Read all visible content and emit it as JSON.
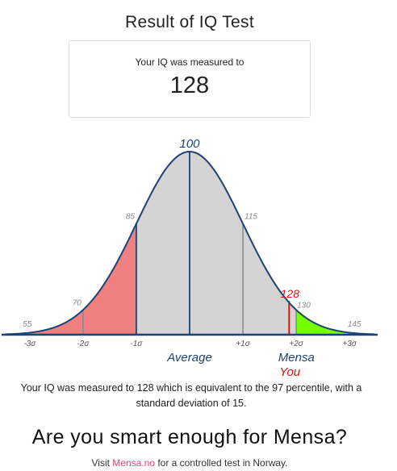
{
  "page": {
    "title": "Result of IQ Test",
    "result_label": "Your IQ was measured to",
    "result_value": "128",
    "summary": "Your IQ was measured to 128 which is equivalent to the 97 percentile, with a standard deviation of 15.",
    "headline": "Are you smart enough for Mensa?",
    "footer_prefix": "Visit ",
    "footer_link": "Mensa.no",
    "footer_suffix": " for a controlled test in Norway."
  },
  "chart_data": {
    "type": "area",
    "distribution": "normal",
    "mean": 100,
    "sd": 15,
    "xlim": [
      48,
      152
    ],
    "score_labels": [
      {
        "value": 55,
        "text": "55"
      },
      {
        "value": 70,
        "text": "70"
      },
      {
        "value": 85,
        "text": "85"
      },
      {
        "value": 100,
        "text": "100"
      },
      {
        "value": 115,
        "text": "115"
      },
      {
        "value": 130,
        "text": "130"
      },
      {
        "value": 145,
        "text": "145"
      }
    ],
    "sigma_labels": [
      {
        "value": 55,
        "text": "-3σ"
      },
      {
        "value": 70,
        "text": "-2σ"
      },
      {
        "value": 85,
        "text": "-1σ"
      },
      {
        "value": 115,
        "text": "+1σ"
      },
      {
        "value": 130,
        "text": "+2σ"
      },
      {
        "value": 145,
        "text": "+3σ"
      }
    ],
    "user_score": 128,
    "user_label": "128",
    "user_caption": "You",
    "mensa_threshold": 130,
    "average_label": "Average",
    "mensa_label": "Mensa",
    "colors": {
      "curve_fill": "#d4d4d4",
      "curve_line": "#1e4275",
      "below_average_fill": "#f08080",
      "mensa_fill": "#76ff00",
      "user_line": "#dd1111",
      "axis": "#1e4275",
      "tick_line": "#888888"
    }
  }
}
